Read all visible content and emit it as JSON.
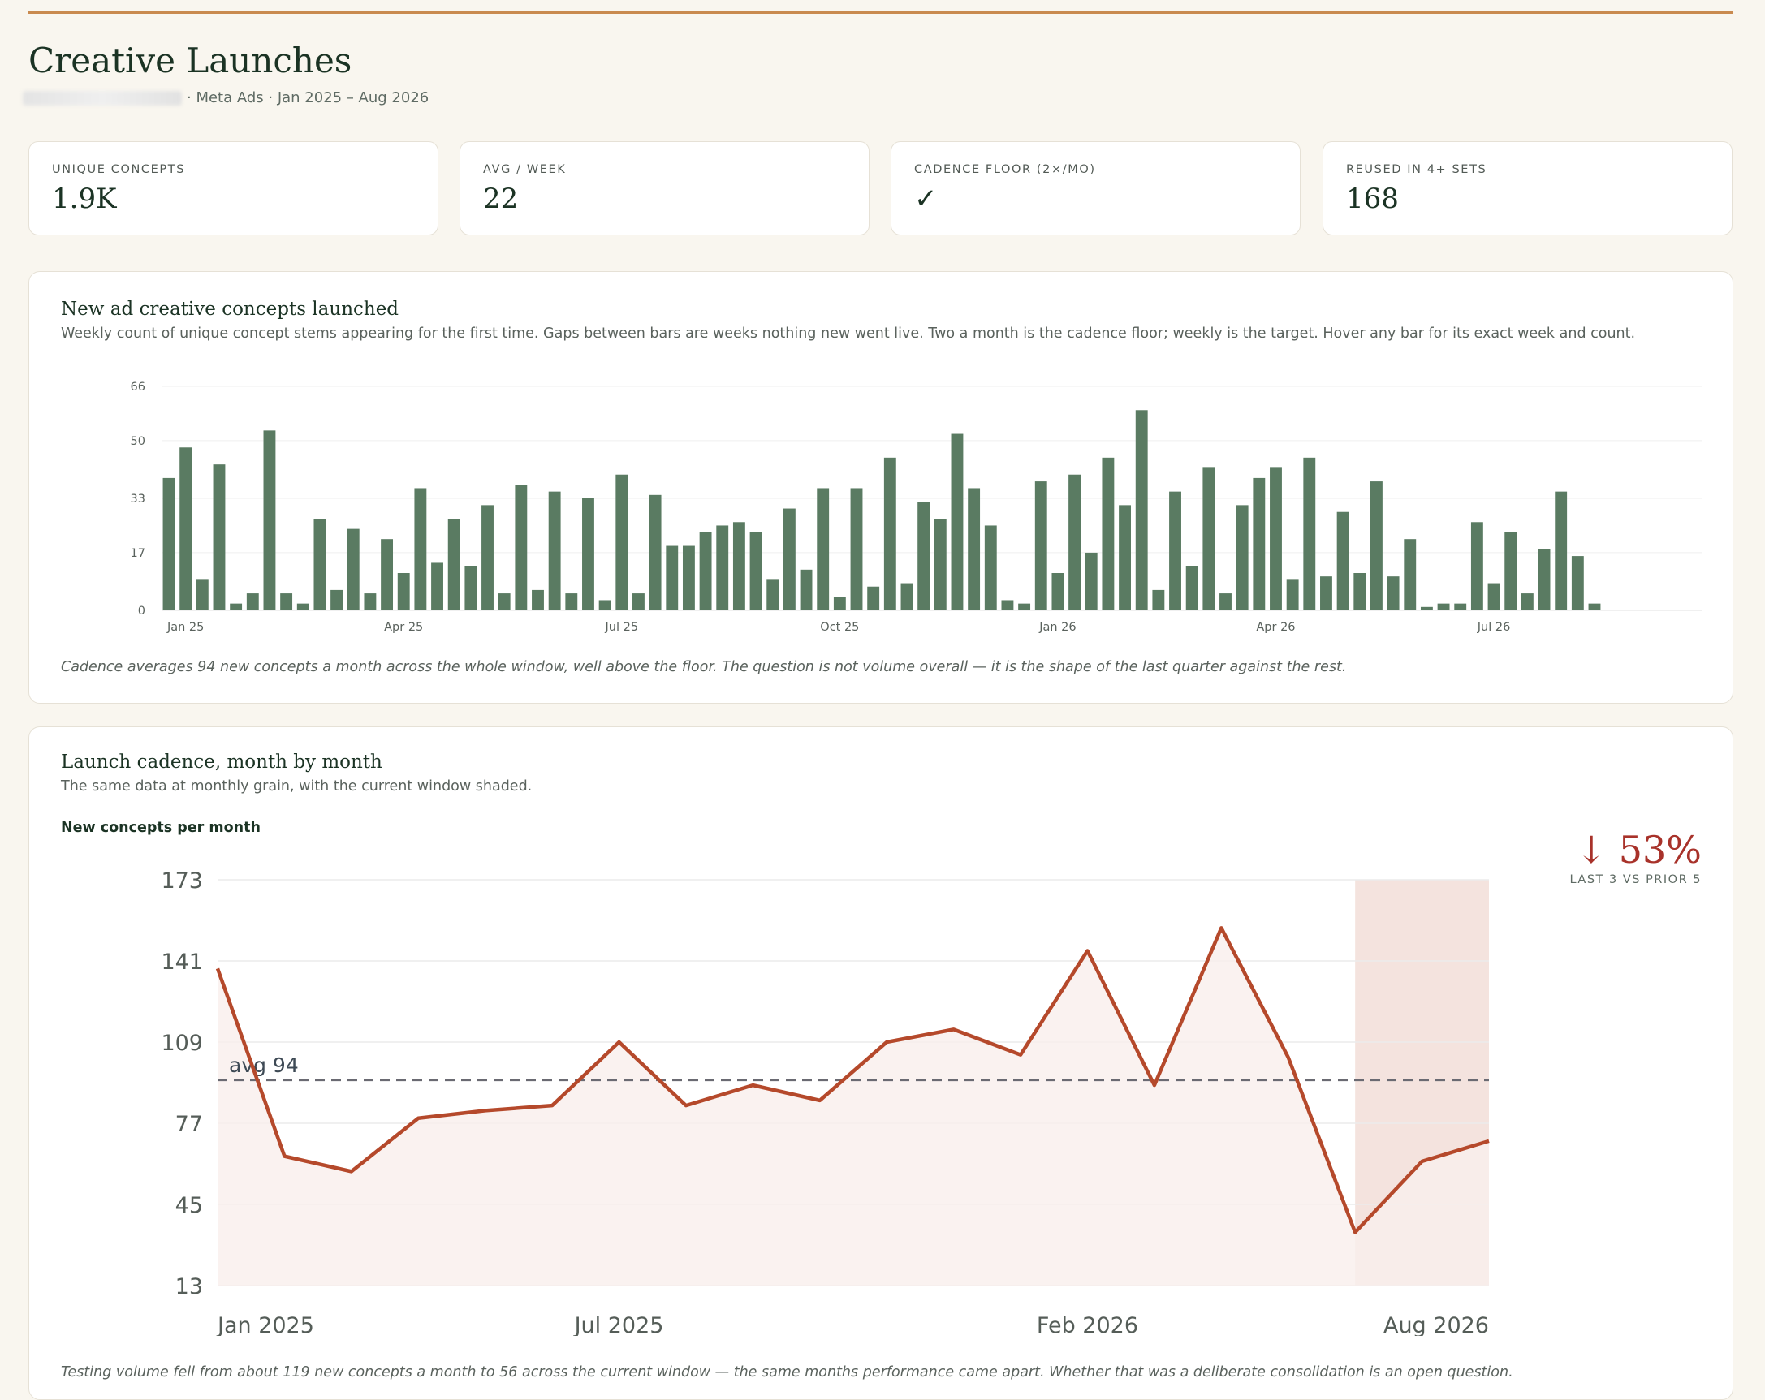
{
  "header": {
    "title": "Creative Launches",
    "subtitle": "· Meta Ads · Jan 2025 – Aug 2026"
  },
  "kpis": [
    {
      "label": "UNIQUE CONCEPTS",
      "value": "1.9K"
    },
    {
      "label": "AVG / WEEK",
      "value": "22"
    },
    {
      "label": "CADENCE FLOOR (2×/MO)",
      "value": "✓"
    },
    {
      "label": "REUSED IN 4+ SETS",
      "value": "168"
    }
  ],
  "weekly_panel": {
    "title": "New ad creative concepts launched",
    "description": "Weekly count of unique concept stems appearing for the first time. Gaps between bars are weeks nothing new went live. Two a month is the cadence floor; weekly is the target. Hover any bar for its exact week and count.",
    "note": "Cadence averages 94 new concepts a month across the whole window, well above the floor. The question is not volume overall — it is the shape of the last quarter against the rest."
  },
  "monthly_panel": {
    "title": "Launch cadence, month by month",
    "description": "The same data at monthly grain, with the current window shaded.",
    "y_title": "New concepts per month",
    "change_value": "↓ 53%",
    "change_label": "LAST 3 VS PRIOR 5",
    "avg_label": "avg 94",
    "note": "Testing volume fell from about 119 new concepts a month to 56 across the current window — the same months performance came apart. Whether that was a deliberate consolidation is an open question."
  },
  "colors": {
    "bar": "#5a7b62",
    "line": "#b5492b",
    "shade": "#f4e3de",
    "fill": "#f9efec",
    "alert": "#a8322a"
  },
  "chart_data": [
    {
      "type": "bar",
      "title": "New ad creative concepts launched",
      "ylim": [
        0,
        66
      ],
      "y_ticks": [
        0,
        17,
        33,
        50,
        66
      ],
      "x_ticks": [
        {
          "label": "Jan 25",
          "index": 1
        },
        {
          "label": "Apr 25",
          "index": 14
        },
        {
          "label": "Jul 25",
          "index": 27
        },
        {
          "label": "Oct 25",
          "index": 40
        },
        {
          "label": "Jan 26",
          "index": 53
        },
        {
          "label": "Apr 26",
          "index": 66
        },
        {
          "label": "Jul 26",
          "index": 79
        }
      ],
      "values": [
        39,
        48,
        9,
        43,
        2,
        5,
        53,
        5,
        2,
        27,
        6,
        24,
        5,
        21,
        11,
        36,
        14,
        27,
        13,
        31,
        5,
        37,
        6,
        35,
        5,
        33,
        3,
        40,
        5,
        34,
        19,
        19,
        23,
        25,
        26,
        23,
        9,
        30,
        12,
        36,
        4,
        36,
        7,
        45,
        8,
        32,
        27,
        52,
        36,
        25,
        3,
        2,
        38,
        11,
        40,
        17,
        45,
        31,
        59,
        6,
        35,
        13,
        42,
        5,
        31,
        39,
        42,
        9,
        45,
        10,
        29,
        11,
        38,
        10,
        21,
        1,
        2,
        2,
        26,
        8,
        23,
        5,
        18,
        35,
        16,
        2
      ]
    },
    {
      "type": "line",
      "title": "Launch cadence, month by month",
      "ylabel": "New concepts per month",
      "ylim": [
        13,
        173
      ],
      "y_ticks": [
        13,
        45,
        77,
        109,
        141,
        173
      ],
      "x_ticks": [
        {
          "label": "Jan 2025",
          "index": 0
        },
        {
          "label": "Jul 2025",
          "index": 6
        },
        {
          "label": "Feb 2026",
          "index": 13
        },
        {
          "label": "Aug 2026",
          "index": 19
        }
      ],
      "months": [
        "Jan 2025",
        "Feb 2025",
        "Mar 2025",
        "Apr 2025",
        "May 2025",
        "Jun 2025",
        "Jul 2025",
        "Aug 2025",
        "Sep 2025",
        "Oct 2025",
        "Nov 2025",
        "Dec 2025",
        "Jan 2026",
        "Feb 2026",
        "Mar 2026",
        "Apr 2026",
        "May 2026",
        "Jun 2026",
        "Jul 2026",
        "Aug 2026"
      ],
      "values": [
        138,
        64,
        58,
        79,
        82,
        84,
        109,
        84,
        92,
        86,
        109,
        114,
        104,
        145,
        92,
        154,
        103,
        34,
        62,
        70
      ],
      "average": 94,
      "shaded_from_index": 17,
      "shaded_to_index": 19
    }
  ]
}
